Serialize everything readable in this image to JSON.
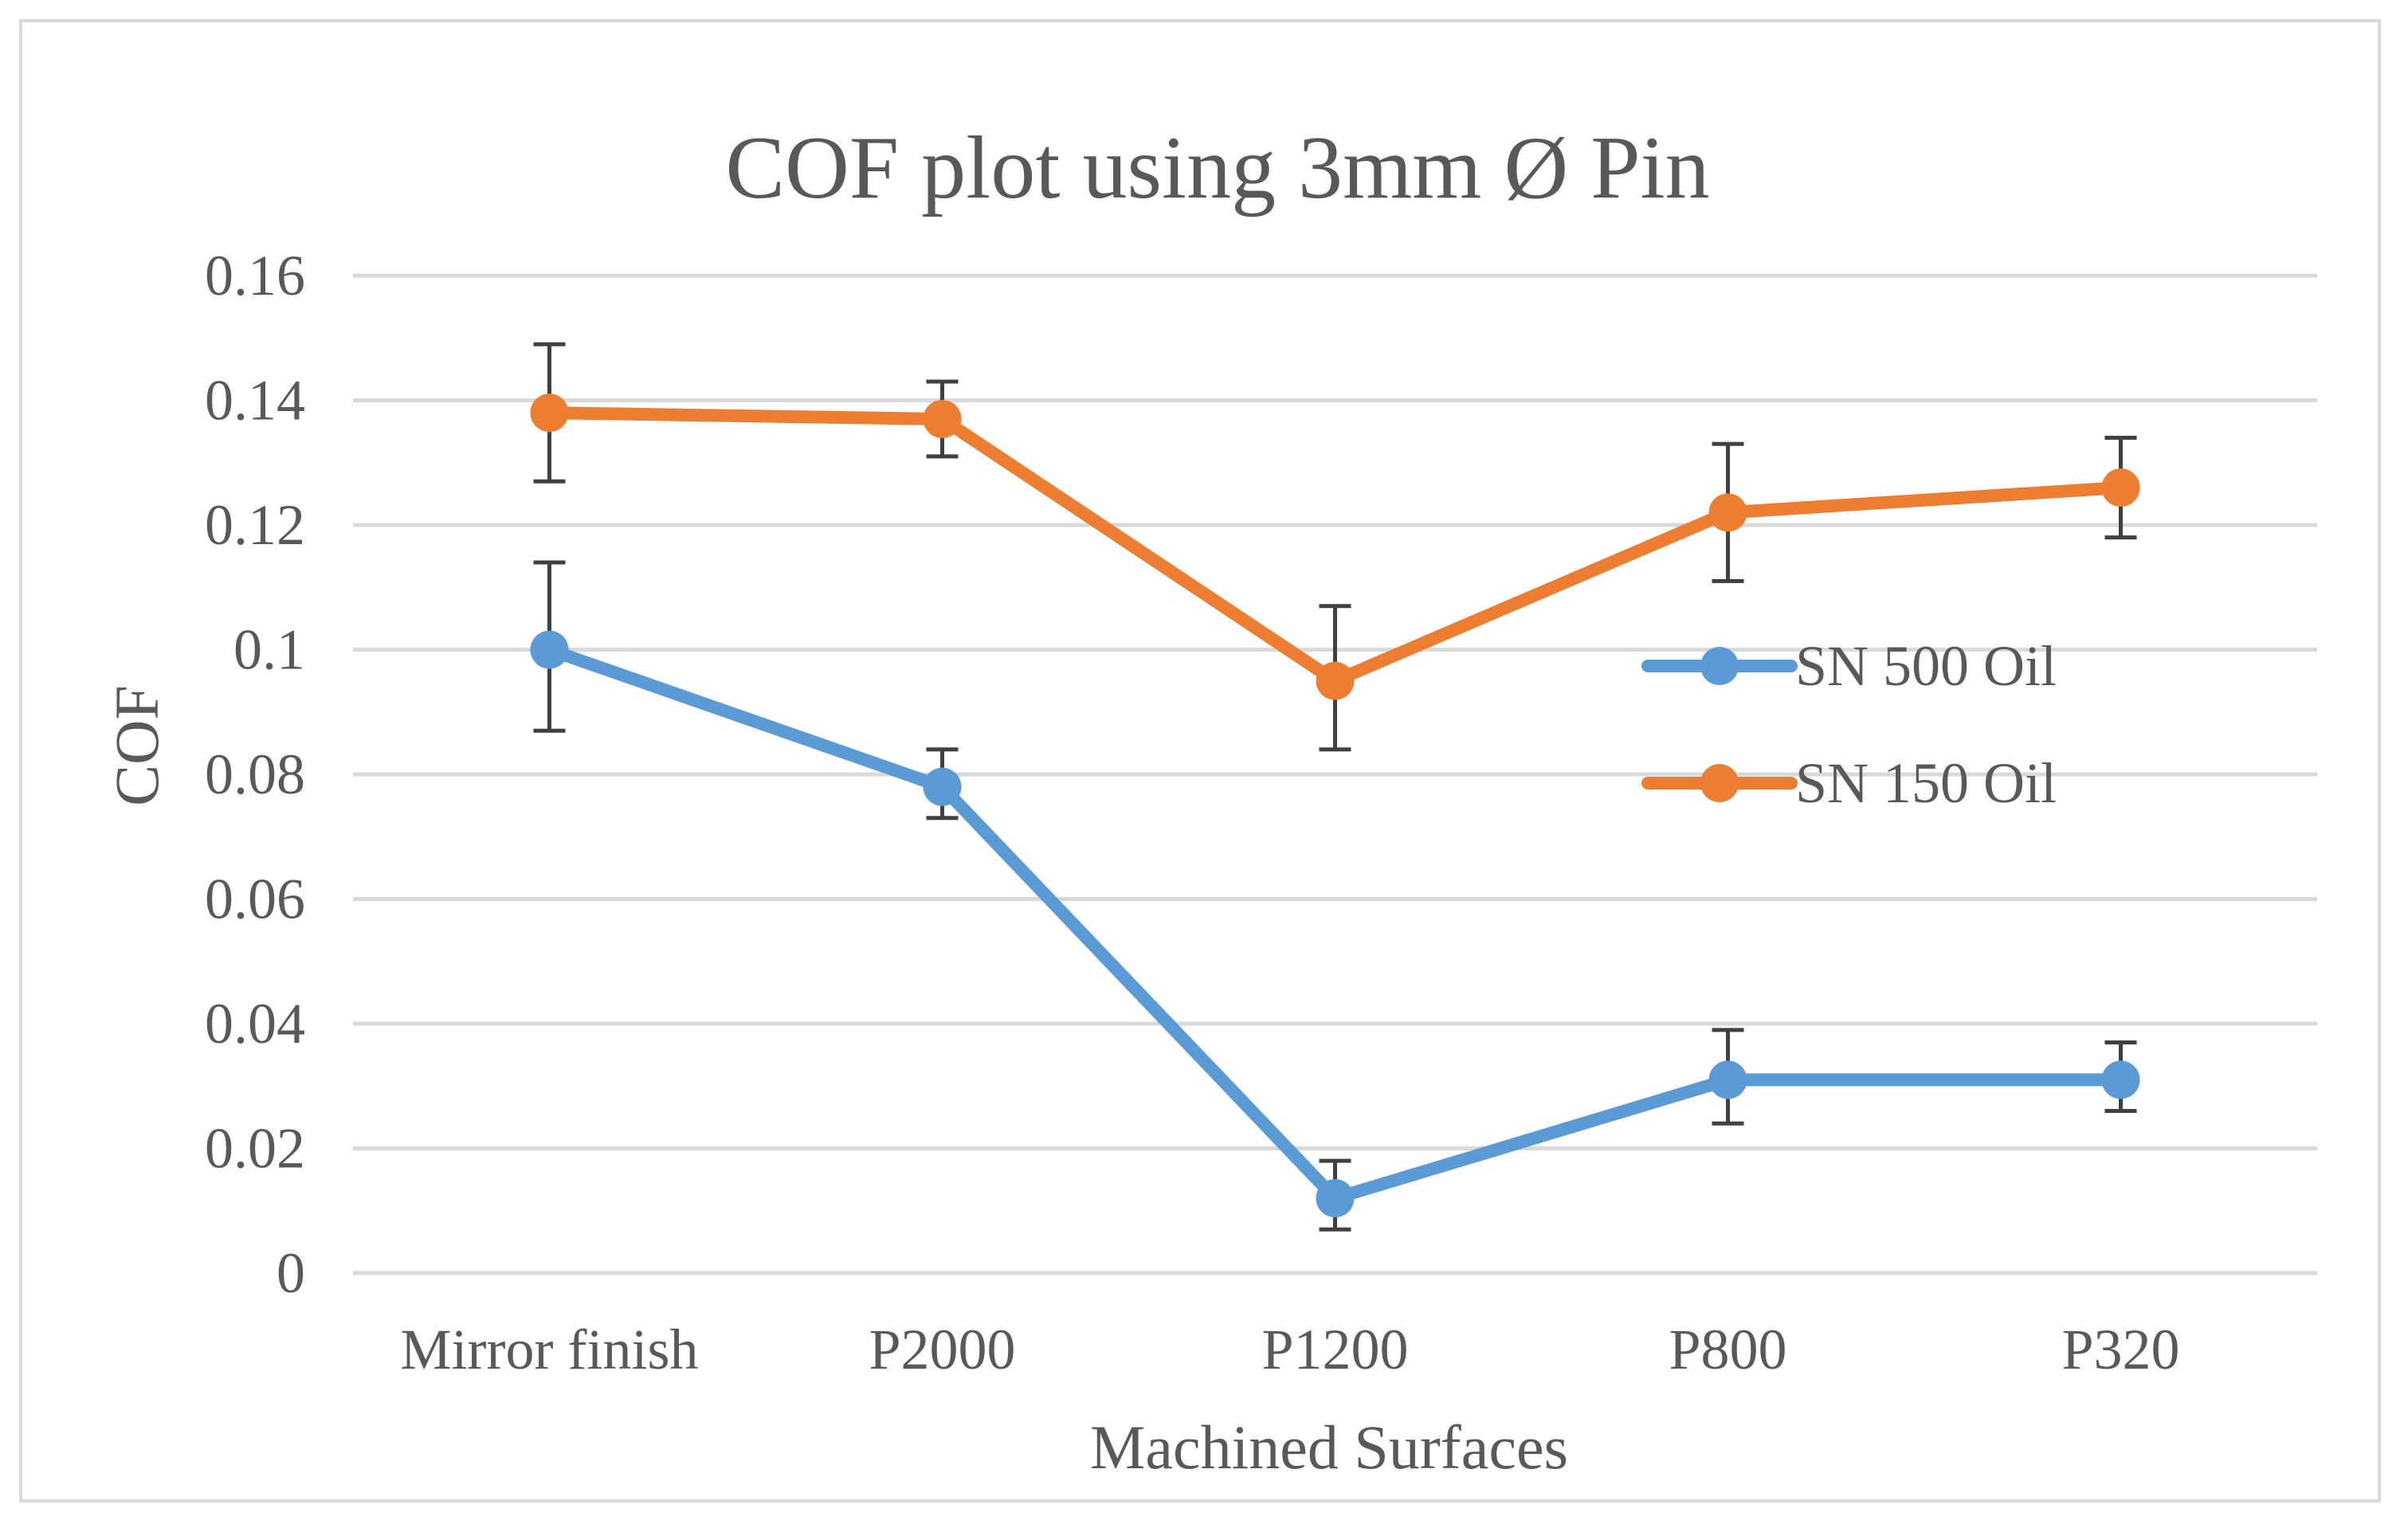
{
  "chart_data": {
    "type": "line",
    "title": "COF plot using 3mm Ø Pin",
    "xlabel": "Machined Surfaces",
    "ylabel": "COF",
    "categories": [
      "Mirror finish",
      "P2000",
      "P1200",
      "P800",
      "P320"
    ],
    "ylim": [
      0,
      0.16
    ],
    "yticks": [
      0,
      0.02,
      0.04,
      0.06,
      0.08,
      0.1,
      0.12,
      0.14,
      0.16
    ],
    "ytick_labels": [
      "0",
      "0.02",
      "0.04",
      "0.06",
      "0.08",
      "0.1",
      "0.12",
      "0.14",
      "0.16"
    ],
    "grid": true,
    "legend_position": "right",
    "series": [
      {
        "name": "SN 500 Oil",
        "color": "#5b9bd5",
        "values": [
          0.1,
          0.078,
          0.012,
          0.031,
          0.031
        ],
        "error_low": [
          0.087,
          0.073,
          0.007,
          0.024,
          0.026
        ],
        "error_high": [
          0.114,
          0.084,
          0.018,
          0.039,
          0.037
        ]
      },
      {
        "name": "SN 150 Oil",
        "color": "#ed7d31",
        "values": [
          0.138,
          0.137,
          0.095,
          0.122,
          0.126
        ],
        "error_low": [
          0.127,
          0.131,
          0.084,
          0.111,
          0.118
        ],
        "error_high": [
          0.149,
          0.143,
          0.107,
          0.133,
          0.134
        ]
      }
    ],
    "error_bar_color": "#404040"
  }
}
